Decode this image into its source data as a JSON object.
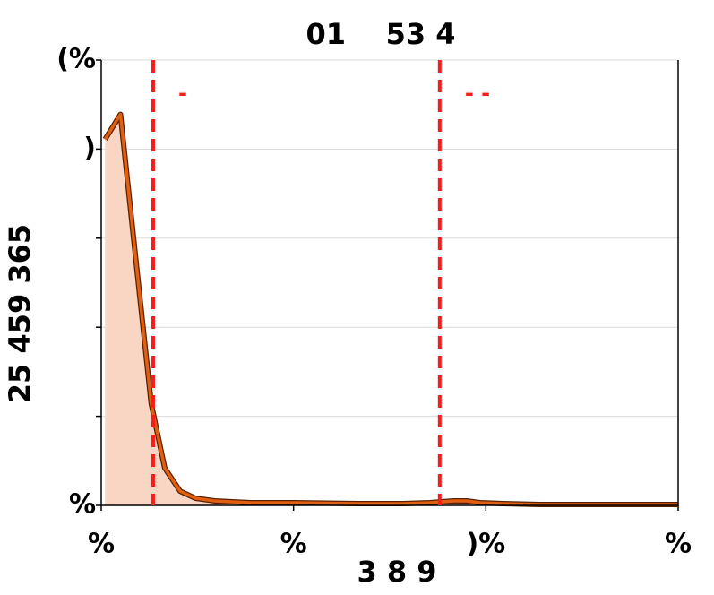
{
  "chart_data": {
    "type": "line",
    "title": "01    53 4",
    "x_label": "3 8 9",
    "y_label": "25 459 365",
    "x": [
      0.02,
      0.1,
      0.18,
      0.26,
      0.33,
      0.41,
      0.49,
      0.59,
      0.78,
      1.0,
      1.34,
      1.57,
      1.71,
      1.77,
      1.83,
      1.9,
      1.97,
      2.09,
      2.28,
      3.0
    ],
    "series": [
      {
        "color": "#e0600f",
        "values": [
          4.11,
          4.39,
          2.76,
          1.14,
          0.42,
          0.16,
          0.08,
          0.05,
          0.03,
          0.03,
          0.02,
          0.02,
          0.03,
          0.04,
          0.05,
          0.05,
          0.03,
          0.02,
          0.01,
          0.01
        ]
      }
    ],
    "fill_color": "#f9d6c4",
    "xlim": [
      0,
      3
    ],
    "ylim": [
      0,
      5
    ],
    "xticks": [
      {
        "value": 0,
        "label": "%"
      },
      {
        "value": 1,
        "label": "%"
      },
      {
        "value": 2,
        "label": ")%"
      },
      {
        "value": 3,
        "label": "%"
      }
    ],
    "yticks": [
      {
        "value": 0,
        "label": "%"
      },
      {
        "value": 1,
        "label": null
      },
      {
        "value": 2,
        "label": null
      },
      {
        "value": 3,
        "label": null
      },
      {
        "value": 4,
        "label": ")"
      },
      {
        "value": 5,
        "label": "(%"
      }
    ],
    "grid": true,
    "vlines": [
      {
        "x": 0.27,
        "label": "-",
        "color": "#ff1a1a"
      },
      {
        "x": 1.76,
        "label": "- -",
        "color": "#ff1a1a"
      }
    ]
  }
}
